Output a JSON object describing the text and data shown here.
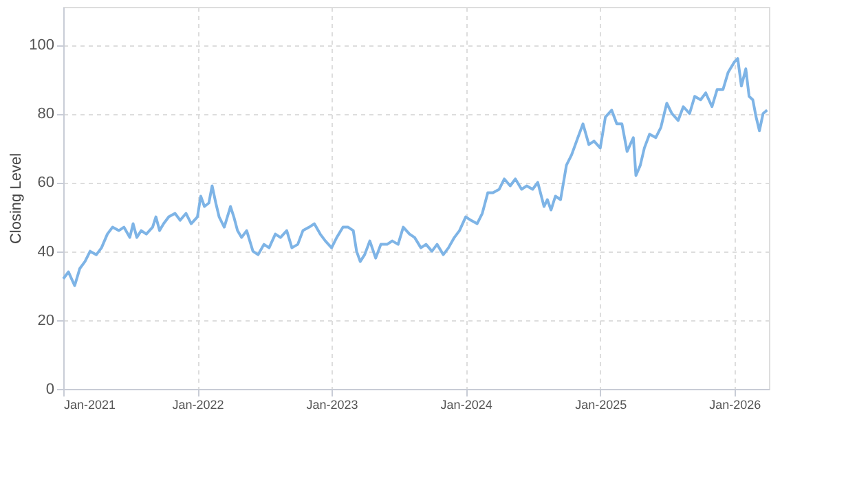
{
  "chart_data": {
    "type": "line",
    "ylabel": "Closing Level",
    "xlim": [
      "2021-01-01",
      "2026-04-05"
    ],
    "ylim": [
      0,
      111
    ],
    "yticks": [
      0,
      20,
      40,
      60,
      80,
      100
    ],
    "xticks": [
      {
        "value": "2021-01-01",
        "label": "Jan-2021"
      },
      {
        "value": "2022-01-01",
        "label": "Jan-2022"
      },
      {
        "value": "2023-01-01",
        "label": "Jan-2023"
      },
      {
        "value": "2024-01-01",
        "label": "Jan-2024"
      },
      {
        "value": "2025-01-01",
        "label": "Jan-2025"
      },
      {
        "value": "2026-01-01",
        "label": "Jan-2026"
      }
    ],
    "grid": true,
    "marker": "none",
    "line_style": "solid",
    "x": [
      "2021-01-01",
      "2021-01-15",
      "2021-02-01",
      "2021-02-15",
      "2021-03-01",
      "2021-03-15",
      "2021-04-01",
      "2021-04-15",
      "2021-05-01",
      "2021-05-15",
      "2021-06-01",
      "2021-06-15",
      "2021-07-01",
      "2021-07-10",
      "2021-07-20",
      "2021-08-01",
      "2021-08-15",
      "2021-09-01",
      "2021-09-10",
      "2021-09-20",
      "2021-10-01",
      "2021-10-15",
      "2021-11-01",
      "2021-11-15",
      "2021-12-01",
      "2021-12-15",
      "2022-01-01",
      "2022-01-10",
      "2022-01-20",
      "2022-02-01",
      "2022-02-10",
      "2022-02-20",
      "2022-03-01",
      "2022-03-15",
      "2022-04-01",
      "2022-04-10",
      "2022-04-20",
      "2022-05-01",
      "2022-05-15",
      "2022-06-01",
      "2022-06-15",
      "2022-07-01",
      "2022-07-15",
      "2022-08-01",
      "2022-08-15",
      "2022-09-01",
      "2022-09-15",
      "2022-10-01",
      "2022-10-15",
      "2022-11-01",
      "2022-11-15",
      "2022-12-01",
      "2022-12-15",
      "2023-01-01",
      "2023-01-15",
      "2023-02-01",
      "2023-02-15",
      "2023-03-01",
      "2023-03-10",
      "2023-03-20",
      "2023-04-01",
      "2023-04-15",
      "2023-05-01",
      "2023-05-15",
      "2023-06-01",
      "2023-06-15",
      "2023-07-01",
      "2023-07-15",
      "2023-08-01",
      "2023-08-15",
      "2023-09-01",
      "2023-09-15",
      "2023-10-01",
      "2023-10-15",
      "2023-11-01",
      "2023-11-15",
      "2023-12-01",
      "2023-12-15",
      "2024-01-01",
      "2024-01-15",
      "2024-02-01",
      "2024-02-15",
      "2024-03-01",
      "2024-03-15",
      "2024-04-01",
      "2024-04-15",
      "2024-05-01",
      "2024-05-15",
      "2024-06-01",
      "2024-06-15",
      "2024-07-01",
      "2024-07-15",
      "2024-08-01",
      "2024-08-10",
      "2024-08-20",
      "2024-09-01",
      "2024-09-15",
      "2024-10-01",
      "2024-10-15",
      "2024-11-01",
      "2024-11-15",
      "2024-12-01",
      "2024-12-15",
      "2025-01-01",
      "2025-01-15",
      "2025-02-01",
      "2025-02-15",
      "2025-03-01",
      "2025-03-15",
      "2025-04-01",
      "2025-04-08",
      "2025-04-20",
      "2025-05-01",
      "2025-05-15",
      "2025-06-01",
      "2025-06-15",
      "2025-07-01",
      "2025-07-15",
      "2025-08-01",
      "2025-08-15",
      "2025-09-01",
      "2025-09-15",
      "2025-10-01",
      "2025-10-15",
      "2025-11-01",
      "2025-11-15",
      "2025-12-01",
      "2025-12-15",
      "2026-01-01",
      "2026-01-10",
      "2026-01-20",
      "2026-02-01",
      "2026-02-10",
      "2026-02-20",
      "2026-03-01",
      "2026-03-10",
      "2026-03-20",
      "2026-03-31"
    ],
    "series": [
      {
        "color": "#7eb4e6",
        "values": [
          32,
          34,
          30,
          35,
          37,
          40,
          39,
          41,
          45,
          47,
          46,
          47,
          44,
          48,
          44,
          46,
          45,
          47,
          50,
          46,
          48,
          50,
          51,
          49,
          51,
          48,
          50,
          56,
          53,
          54,
          59,
          54,
          50,
          47,
          53,
          50,
          46,
          44,
          46,
          40,
          39,
          42,
          41,
          45,
          44,
          46,
          41,
          42,
          46,
          47,
          48,
          45,
          43,
          41,
          44,
          47,
          47,
          46,
          40,
          37,
          39,
          43,
          38,
          42,
          42,
          43,
          42,
          47,
          45,
          44,
          41,
          42,
          40,
          42,
          39,
          41,
          44,
          46,
          50,
          49,
          48,
          51,
          57,
          57,
          58,
          61,
          59,
          61,
          58,
          59,
          58,
          60,
          53,
          55,
          52,
          56,
          55,
          65,
          68,
          73,
          77,
          71,
          72,
          70,
          79,
          81,
          77,
          77,
          69,
          73,
          62,
          65,
          70,
          74,
          73,
          76,
          83,
          80,
          78,
          82,
          80,
          85,
          84,
          86,
          82,
          87,
          87,
          92,
          95,
          96,
          88,
          93,
          85,
          84,
          79,
          75,
          80,
          81
        ]
      }
    ]
  }
}
